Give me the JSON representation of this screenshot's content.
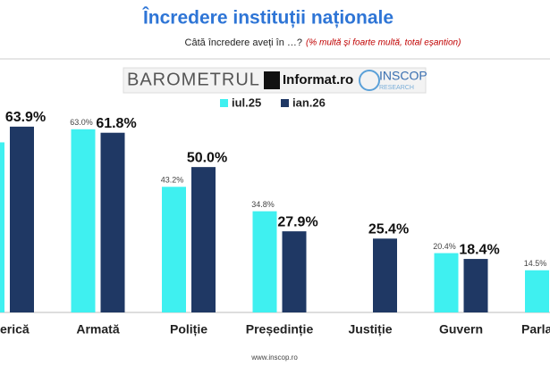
{
  "chart_data": {
    "type": "bar",
    "title": "Încredere instituții naționale",
    "subtitle": "Câtă încredere aveți în …?",
    "subtitle_note": "(% multă și foarte multă, total eșantion)",
    "branding": [
      "BAROMETRUL",
      "Informat.ro",
      "INSCOP",
      "RESEARCH"
    ],
    "footer": "www.inscop.ro",
    "categories": [
      "erică",
      "Armată",
      "Poliție",
      "Președinție",
      "Justiție",
      "Guvern",
      "Parla"
    ],
    "ylim": [
      0,
      70
    ],
    "legend": "top",
    "series": [
      {
        "name": "iul.25",
        "color": "#3ff0f0",
        "values": [
          58.5,
          63.0,
          43.2,
          34.8,
          null,
          20.4,
          14.5
        ],
        "value_labels": [
          null,
          "63.0%",
          "43.2%",
          "34.8%",
          null,
          "20.4%",
          "14.5%"
        ]
      },
      {
        "name": "ian.26",
        "color": "#1f3864",
        "values": [
          63.9,
          61.8,
          50.0,
          27.9,
          25.4,
          18.4,
          null
        ],
        "value_labels": [
          "63.9%",
          "61.8%",
          "50.0%",
          "27.9%",
          "25.4%",
          "18.4%",
          null
        ]
      }
    ]
  }
}
